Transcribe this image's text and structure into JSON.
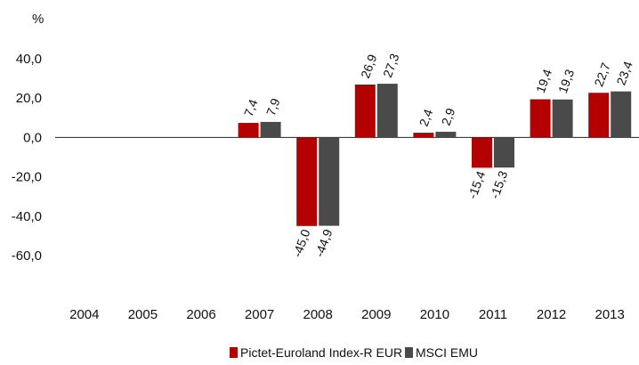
{
  "chart_data": {
    "type": "bar",
    "unit_label": "%",
    "categories": [
      "2004",
      "2005",
      "2006",
      "2007",
      "2008",
      "2009",
      "2010",
      "2011",
      "2012",
      "2013"
    ],
    "series": [
      {
        "name": "Pictet-Euroland Index-R EUR",
        "color": "#b30000",
        "values": [
          null,
          null,
          null,
          7.4,
          -45.0,
          26.9,
          2.4,
          -15.4,
          19.4,
          22.7
        ],
        "labels": [
          "",
          "",
          "",
          "7,4",
          "-45,0",
          "26,9",
          "2,4",
          "-15,4",
          "19,4",
          "22,7"
        ]
      },
      {
        "name": "MSCI EMU",
        "color": "#4a4a4a",
        "values": [
          null,
          null,
          null,
          7.9,
          -44.9,
          27.3,
          2.9,
          -15.3,
          19.3,
          23.4
        ],
        "labels": [
          "",
          "",
          "",
          "7,9",
          "-44,9",
          "27,3",
          "2,9",
          "-15,3",
          "19,3",
          "23,4"
        ]
      }
    ],
    "y_ticks": [
      40,
      20,
      0,
      -20,
      -40,
      -60
    ],
    "y_tick_labels": [
      "40,0",
      "20,0",
      "0,0",
      "-20,0",
      "-40,0",
      "-60,0"
    ],
    "ylim": [
      -60,
      40
    ],
    "grid": false,
    "legend_position": "bottom"
  }
}
